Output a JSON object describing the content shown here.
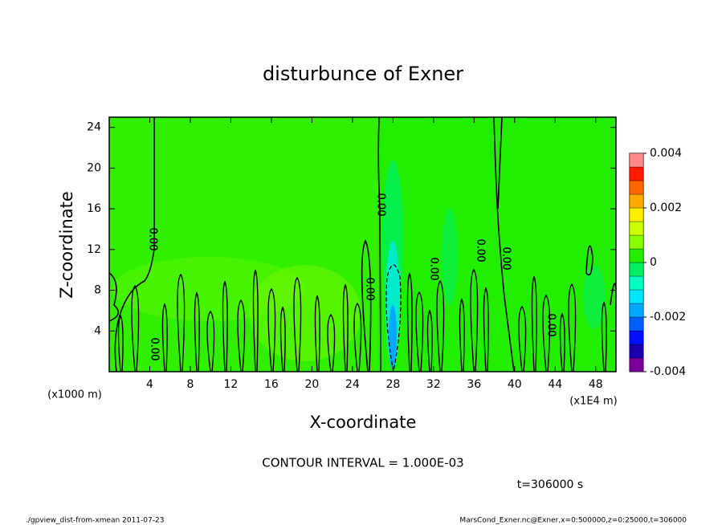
{
  "chart_data": {
    "type": "contour",
    "title": "disturbunce of Exner",
    "x_label": "X-coordinate",
    "y_label": "Z-coordinate",
    "x_unit_left": "(x1000 m)",
    "x_unit_right": "(x1E4 m)",
    "xlim": [
      0,
      50
    ],
    "xticks": [
      4,
      8,
      12,
      16,
      20,
      24,
      28,
      32,
      36,
      40,
      44,
      48
    ],
    "ylim": [
      0,
      25
    ],
    "yticks": [
      4,
      8,
      12,
      16,
      20,
      24
    ],
    "contour_labels": [
      "0.00",
      "0.00",
      "0.00",
      "0.00",
      "0.00",
      "0.00",
      "0.00",
      "0.00"
    ],
    "colorbar": {
      "levels": [
        -0.004,
        -0.0035,
        -0.003,
        -0.0025,
        -0.002,
        -0.0015,
        -0.001,
        -0.0005,
        0,
        0.0005,
        0.001,
        0.0015,
        0.002,
        0.0025,
        0.003,
        0.0035,
        0.004
      ],
      "colors": [
        "#7a0099",
        "#1a00b0",
        "#0010ff",
        "#0060ff",
        "#00a8ff",
        "#00e8ff",
        "#00ffc0",
        "#00f060",
        "#22ee00",
        "#88ff00",
        "#ccff00",
        "#ffee00",
        "#ffaa00",
        "#ff6600",
        "#ff1a00",
        "#ff8888"
      ],
      "ticks": [
        -0.004,
        -0.002,
        0,
        0.002,
        0.004
      ]
    },
    "annotations": [
      "CONTOUR INTERVAL = 1.000E-03",
      "t=306000 s"
    ],
    "footer_left": "./gpview_dist-from-xmean  2011-07-23",
    "footer_right": "MarsCond_Exner.nc@Exner,x=0:500000,z=0:25000,t=306000"
  }
}
